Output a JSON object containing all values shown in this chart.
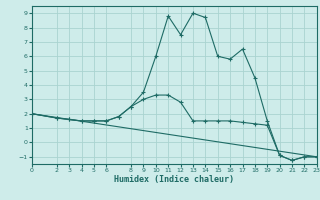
{
  "xlabel": "Humidex (Indice chaleur)",
  "background_color": "#ceecea",
  "grid_color": "#aad4d0",
  "line_color": "#1e6b65",
  "xlim": [
    0,
    23
  ],
  "ylim": [
    -1.5,
    9.5
  ],
  "yticks": [
    -1,
    0,
    1,
    2,
    3,
    4,
    5,
    6,
    7,
    8,
    9
  ],
  "xticks": [
    0,
    2,
    3,
    4,
    5,
    6,
    8,
    9,
    10,
    11,
    12,
    13,
    14,
    15,
    16,
    17,
    18,
    19,
    20,
    21,
    22,
    23
  ],
  "series1_x": [
    0,
    2,
    3,
    4,
    5,
    6,
    7,
    8,
    9,
    10,
    11,
    12,
    13,
    14,
    15,
    16,
    17,
    18,
    19,
    20,
    21,
    22,
    23
  ],
  "series1_y": [
    2.0,
    1.7,
    1.6,
    1.5,
    1.5,
    1.5,
    1.8,
    2.5,
    3.0,
    3.3,
    3.3,
    2.8,
    1.5,
    1.5,
    1.5,
    1.5,
    1.4,
    1.3,
    1.2,
    -0.9,
    -1.25,
    -1.0,
    -1.0
  ],
  "series2_x": [
    0,
    2,
    3,
    4,
    5,
    6,
    7,
    8,
    9,
    10,
    11,
    12,
    13,
    14,
    15,
    16,
    17,
    18,
    19,
    20,
    21,
    22,
    23
  ],
  "series2_y": [
    2.0,
    1.7,
    1.6,
    1.5,
    1.5,
    1.5,
    1.8,
    2.5,
    3.5,
    6.0,
    8.8,
    7.5,
    9.0,
    8.7,
    6.0,
    5.8,
    6.5,
    4.5,
    1.5,
    -0.9,
    -1.25,
    -1.0,
    -1.0
  ],
  "series3_x": [
    0,
    23
  ],
  "series3_y": [
    2.0,
    -1.0
  ]
}
